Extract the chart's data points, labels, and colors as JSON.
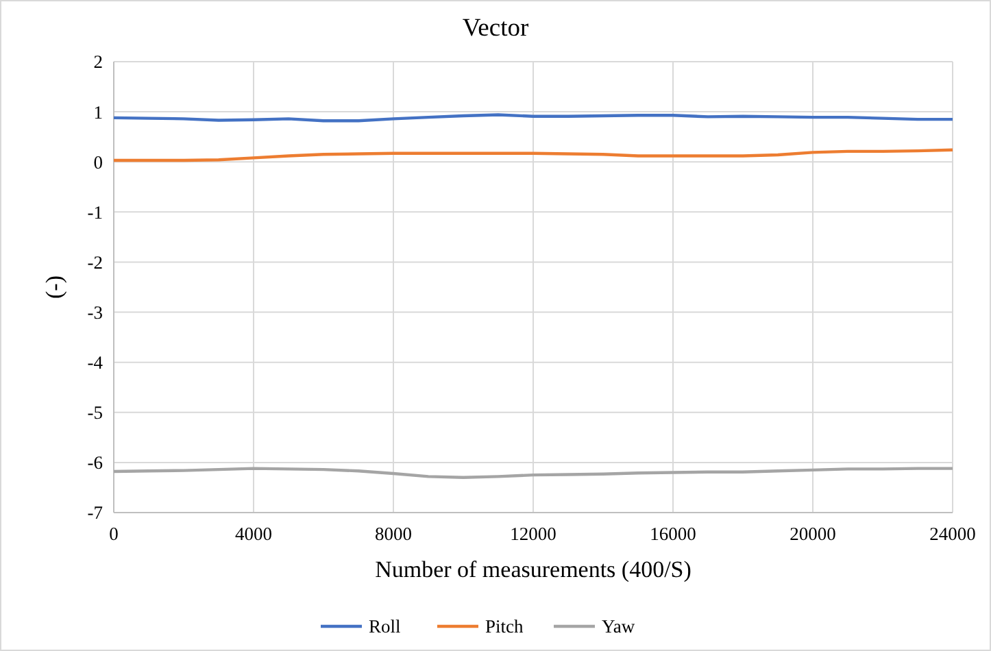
{
  "chart_data": {
    "type": "line",
    "title": "Vector",
    "xlabel": "Number of measurements  (400/S)",
    "ylabel": "(-)",
    "xlim": [
      0,
      24000
    ],
    "xticks": [
      0,
      4000,
      8000,
      12000,
      16000,
      20000,
      24000
    ],
    "ylim": [
      -7,
      2
    ],
    "yticks": [
      -7,
      -6,
      -5,
      -4,
      -3,
      -2,
      -1,
      0,
      1,
      2
    ],
    "grid": true,
    "legend": "bottom",
    "marker": "none",
    "series": [
      {
        "name": "Roll",
        "color": "#4472c4",
        "x": [
          0,
          1000,
          2000,
          3000,
          4000,
          5000,
          6000,
          7000,
          8000,
          9000,
          10000,
          11000,
          12000,
          13000,
          14000,
          15000,
          16000,
          17000,
          18000,
          19000,
          20000,
          21000,
          22000,
          23000,
          24000
        ],
        "values": [
          0.88,
          0.87,
          0.86,
          0.83,
          0.84,
          0.86,
          0.82,
          0.82,
          0.86,
          0.89,
          0.92,
          0.94,
          0.91,
          0.91,
          0.92,
          0.93,
          0.93,
          0.9,
          0.91,
          0.9,
          0.89,
          0.89,
          0.87,
          0.85,
          0.85
        ]
      },
      {
        "name": "Pitch",
        "color": "#ed7d31",
        "x": [
          0,
          1000,
          2000,
          3000,
          4000,
          5000,
          6000,
          7000,
          8000,
          9000,
          10000,
          11000,
          12000,
          13000,
          14000,
          15000,
          16000,
          17000,
          18000,
          19000,
          20000,
          21000,
          22000,
          23000,
          24000
        ],
        "values": [
          0.03,
          0.03,
          0.03,
          0.04,
          0.08,
          0.12,
          0.15,
          0.16,
          0.17,
          0.17,
          0.17,
          0.17,
          0.17,
          0.16,
          0.15,
          0.12,
          0.12,
          0.12,
          0.12,
          0.14,
          0.19,
          0.21,
          0.21,
          0.22,
          0.24
        ]
      },
      {
        "name": "Yaw",
        "color": "#a5a5a5",
        "x": [
          0,
          1000,
          2000,
          3000,
          4000,
          5000,
          6000,
          7000,
          8000,
          9000,
          10000,
          11000,
          12000,
          13000,
          14000,
          15000,
          16000,
          17000,
          18000,
          19000,
          20000,
          21000,
          22000,
          23000,
          24000
        ],
        "values": [
          -6.18,
          -6.17,
          -6.16,
          -6.14,
          -6.12,
          -6.13,
          -6.14,
          -6.17,
          -6.22,
          -6.28,
          -6.3,
          -6.28,
          -6.25,
          -6.24,
          -6.23,
          -6.21,
          -6.2,
          -6.19,
          -6.19,
          -6.17,
          -6.15,
          -6.13,
          -6.13,
          -6.12,
          -6.12
        ]
      }
    ]
  }
}
